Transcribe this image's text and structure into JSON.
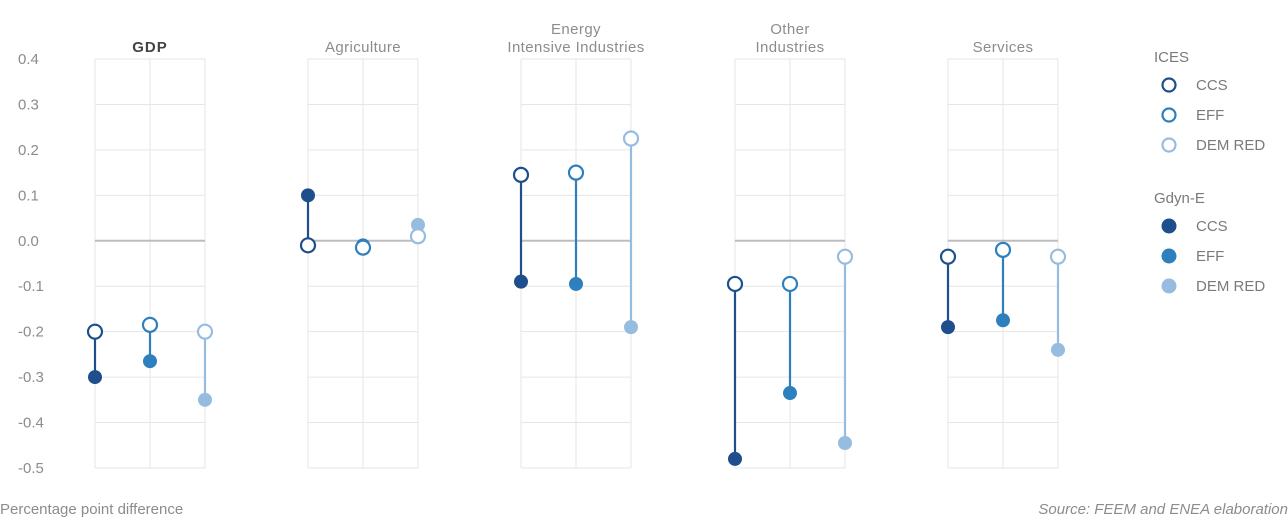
{
  "chart_data": {
    "type": "dumbbell",
    "y_ticks": [
      "0.4",
      "0.3",
      "0.2",
      "0.1",
      "0.0",
      "-0.1",
      "-0.2",
      "-0.3",
      "-0.4",
      "-0.5"
    ],
    "ylim": [
      -0.5,
      0.4
    ],
    "panels": [
      {
        "title_lines": [
          "GDP"
        ],
        "bold": true,
        "ices": [
          -0.2,
          -0.185,
          -0.2
        ],
        "gdyn": [
          -0.3,
          -0.265,
          -0.35
        ]
      },
      {
        "title_lines": [
          "Agriculture"
        ],
        "bold": false,
        "ices": [
          -0.01,
          -0.015,
          0.01
        ],
        "gdyn": [
          0.1,
          -0.01,
          0.035
        ]
      },
      {
        "title_lines": [
          "Energy",
          "Intensive Industries"
        ],
        "bold": false,
        "ices": [
          0.145,
          0.15,
          0.225
        ],
        "gdyn": [
          -0.09,
          -0.095,
          -0.19
        ]
      },
      {
        "title_lines": [
          "Other",
          "Industries"
        ],
        "bold": false,
        "ices": [
          -0.095,
          -0.095,
          -0.035
        ],
        "gdyn": [
          -0.48,
          -0.335,
          -0.445
        ]
      },
      {
        "title_lines": [
          "Services"
        ],
        "bold": false,
        "ices": [
          -0.035,
          -0.02,
          -0.035
        ],
        "gdyn": [
          -0.19,
          -0.175,
          -0.24
        ]
      }
    ],
    "scenario_colors": [
      "#1f4e8c",
      "#2e7fbe",
      "#96bde0"
    ],
    "legend": {
      "groups": [
        {
          "title": "ICES",
          "marker": "hollow",
          "items": [
            "CCS",
            "EFF",
            "DEM RED"
          ]
        },
        {
          "title": "Gdyn-E",
          "marker": "filled",
          "items": [
            "CCS",
            "EFF",
            "DEM RED"
          ]
        }
      ]
    },
    "grid": true,
    "legend_position": "right"
  },
  "footer": {
    "left": "Percentage point difference",
    "right": "Source: FEEM and ENEA elaboration"
  }
}
